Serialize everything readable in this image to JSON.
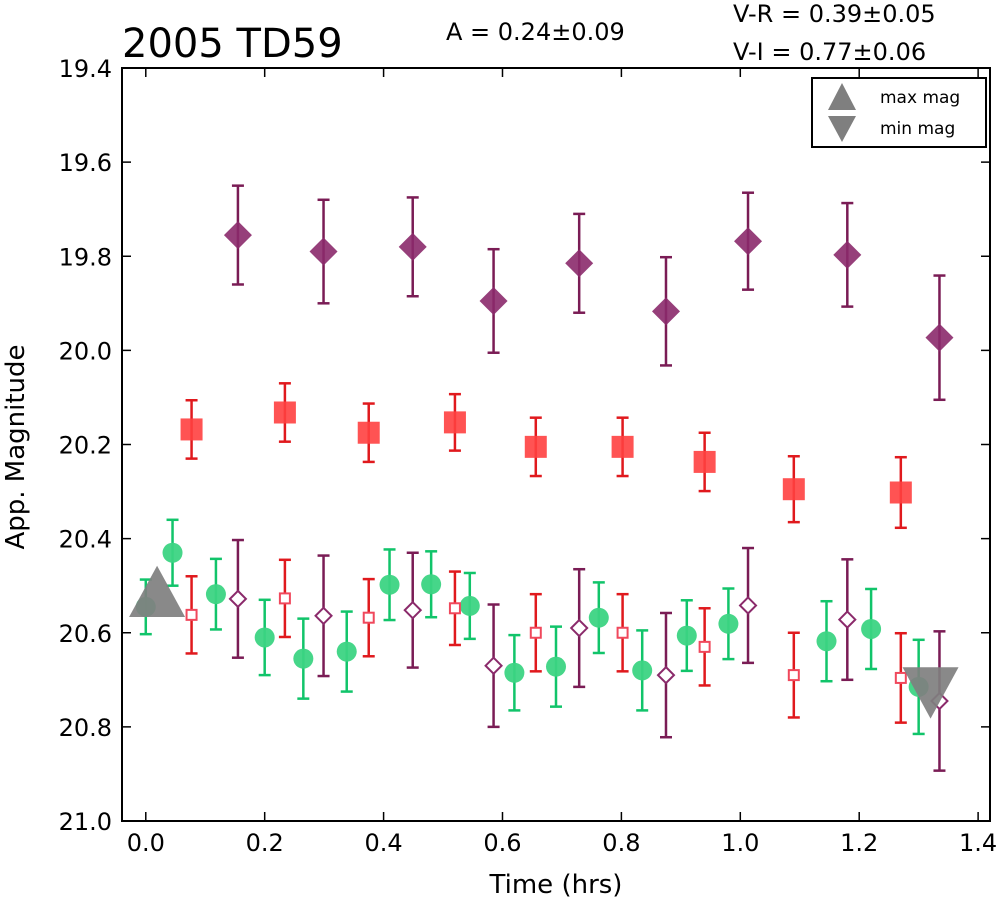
{
  "chart_data": {
    "type": "scatter",
    "title": "2005 TD59",
    "annotations": {
      "amplitude": "A  = 0.24±0.09",
      "vr": "V-R = 0.39±0.05",
      "vi": "V-I  = 0.77±0.06"
    },
    "xlabel": "Time (hrs)",
    "ylabel": "App. Magnitude",
    "xlim": [
      -0.04,
      1.42
    ],
    "ylim": [
      19.4,
      21.0
    ],
    "y_inverted": true,
    "grid": false,
    "xticks": [
      "0.0",
      "0.2",
      "0.4",
      "0.6",
      "0.8",
      "1.0",
      "1.2",
      "1.4"
    ],
    "yticks": [
      "19.4",
      "19.6",
      "19.8",
      "20.0",
      "20.2",
      "20.4",
      "20.6",
      "20.8",
      "21.0"
    ],
    "legend": {
      "placement": "top-right",
      "entries": [
        {
          "label": "max mag",
          "marker": "triangle-up",
          "color": "#7f7f7f"
        },
        {
          "label": "min mag",
          "marker": "triangle-down",
          "color": "#7f7f7f"
        }
      ]
    },
    "series": [
      {
        "marker": "diamond",
        "filled": true,
        "color": "#8b2a6b",
        "err_color": "#7a1c55",
        "points": [
          {
            "x": 0.155,
            "y": 19.755,
            "err": 0.105
          },
          {
            "x": 0.299,
            "y": 19.79,
            "err": 0.11
          },
          {
            "x": 0.449,
            "y": 19.78,
            "err": 0.105
          },
          {
            "x": 0.585,
            "y": 19.895,
            "err": 0.11
          },
          {
            "x": 0.729,
            "y": 19.815,
            "err": 0.105
          },
          {
            "x": 0.875,
            "y": 19.917,
            "err": 0.115
          },
          {
            "x": 1.013,
            "y": 19.768,
            "err": 0.103
          },
          {
            "x": 1.18,
            "y": 19.797,
            "err": 0.11
          },
          {
            "x": 1.335,
            "y": 19.973,
            "err": 0.132
          }
        ]
      },
      {
        "marker": "square",
        "filled": true,
        "color": "#ff4040",
        "err_color": "#e0191d",
        "points": [
          {
            "x": 0.077,
            "y": 20.168,
            "err": 0.062
          },
          {
            "x": 0.234,
            "y": 20.132,
            "err": 0.062
          },
          {
            "x": 0.375,
            "y": 20.175,
            "err": 0.062
          },
          {
            "x": 0.52,
            "y": 20.153,
            "err": 0.06
          },
          {
            "x": 0.656,
            "y": 20.205,
            "err": 0.062
          },
          {
            "x": 0.802,
            "y": 20.205,
            "err": 0.062
          },
          {
            "x": 0.94,
            "y": 20.237,
            "err": 0.062
          },
          {
            "x": 1.09,
            "y": 20.295,
            "err": 0.07
          },
          {
            "x": 1.27,
            "y": 20.302,
            "err": 0.075
          }
        ]
      },
      {
        "marker": "circle",
        "filled": true,
        "color": "#3cd483",
        "err_color": "#11c46a",
        "points": [
          {
            "x": 0.0,
            "y": 20.545,
            "err": 0.058
          },
          {
            "x": 0.045,
            "y": 20.43,
            "err": 0.07
          },
          {
            "x": 0.118,
            "y": 20.518,
            "err": 0.075
          },
          {
            "x": 0.2,
            "y": 20.61,
            "err": 0.08
          },
          {
            "x": 0.265,
            "y": 20.655,
            "err": 0.085
          },
          {
            "x": 0.338,
            "y": 20.64,
            "err": 0.085
          },
          {
            "x": 0.41,
            "y": 20.498,
            "err": 0.075
          },
          {
            "x": 0.48,
            "y": 20.497,
            "err": 0.07
          },
          {
            "x": 0.545,
            "y": 20.543,
            "err": 0.07
          },
          {
            "x": 0.62,
            "y": 20.685,
            "err": 0.08
          },
          {
            "x": 0.69,
            "y": 20.672,
            "err": 0.085
          },
          {
            "x": 0.762,
            "y": 20.568,
            "err": 0.075
          },
          {
            "x": 0.835,
            "y": 20.68,
            "err": 0.085
          },
          {
            "x": 0.91,
            "y": 20.606,
            "err": 0.075
          },
          {
            "x": 0.98,
            "y": 20.581,
            "err": 0.075
          },
          {
            "x": 1.145,
            "y": 20.618,
            "err": 0.085
          },
          {
            "x": 1.22,
            "y": 20.592,
            "err": 0.085
          },
          {
            "x": 1.3,
            "y": 20.715,
            "err": 0.1
          }
        ]
      },
      {
        "marker": "square",
        "filled": false,
        "color": "#f0485c",
        "err_color": "#e0191d",
        "points": [
          {
            "x": 0.077,
            "y": 20.562,
            "err": 0.082
          },
          {
            "x": 0.234,
            "y": 20.527,
            "err": 0.082
          },
          {
            "x": 0.375,
            "y": 20.568,
            "err": 0.082
          },
          {
            "x": 0.52,
            "y": 20.548,
            "err": 0.078
          },
          {
            "x": 0.656,
            "y": 20.6,
            "err": 0.082
          },
          {
            "x": 0.802,
            "y": 20.6,
            "err": 0.082
          },
          {
            "x": 0.94,
            "y": 20.63,
            "err": 0.082
          },
          {
            "x": 1.09,
            "y": 20.69,
            "err": 0.09
          },
          {
            "x": 1.27,
            "y": 20.696,
            "err": 0.095
          }
        ]
      },
      {
        "marker": "diamond",
        "filled": false,
        "color": "#8b2a6b",
        "err_color": "#7a1c55",
        "points": [
          {
            "x": 0.155,
            "y": 20.528,
            "err": 0.125
          },
          {
            "x": 0.299,
            "y": 20.564,
            "err": 0.128
          },
          {
            "x": 0.449,
            "y": 20.552,
            "err": 0.122
          },
          {
            "x": 0.585,
            "y": 20.67,
            "err": 0.13
          },
          {
            "x": 0.729,
            "y": 20.59,
            "err": 0.125
          },
          {
            "x": 0.875,
            "y": 20.69,
            "err": 0.132
          },
          {
            "x": 1.013,
            "y": 20.542,
            "err": 0.122
          },
          {
            "x": 1.18,
            "y": 20.572,
            "err": 0.128
          },
          {
            "x": 1.335,
            "y": 20.745,
            "err": 0.148
          }
        ]
      }
    ],
    "extrema": [
      {
        "label": "max mag",
        "marker": "triangle-up",
        "x": 0.019,
        "y": 20.515,
        "color": "#7f7f7f"
      },
      {
        "label": "min mag",
        "marker": "triangle-down",
        "x": 1.32,
        "y": 20.725,
        "color": "#7f7f7f"
      }
    ]
  }
}
